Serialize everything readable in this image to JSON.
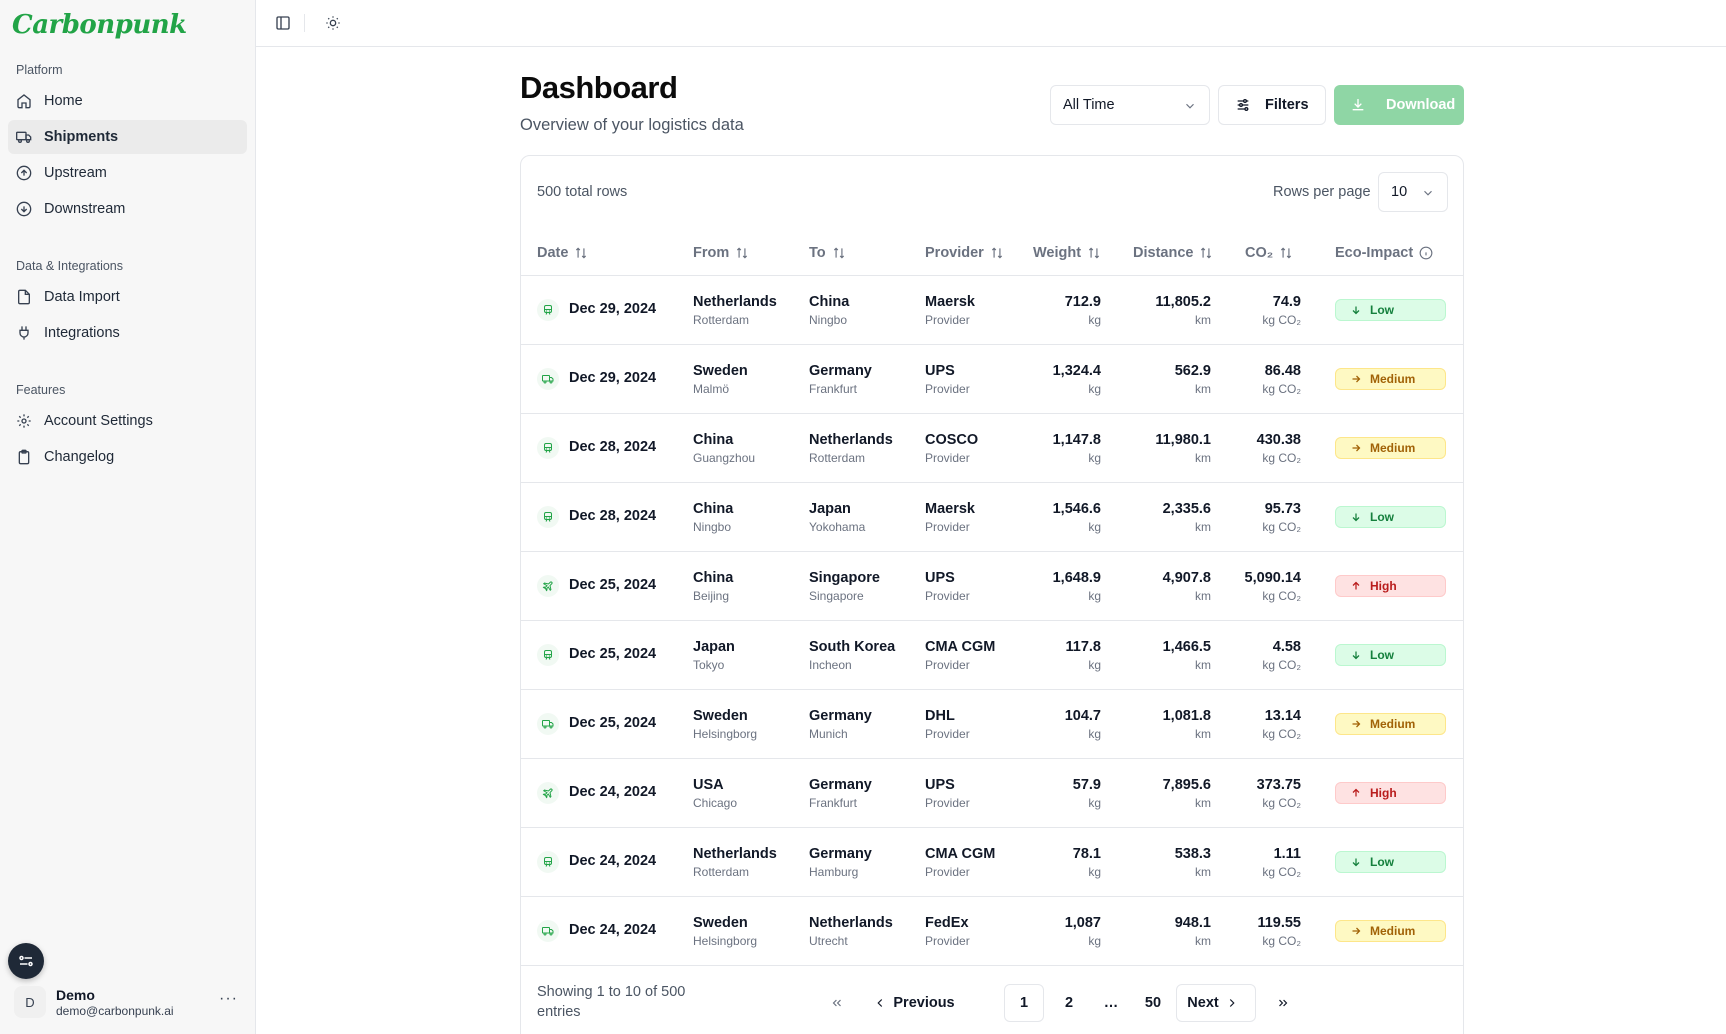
{
  "brand": {
    "name": "Carbonpunk",
    "accent": "#22a447"
  },
  "sidebar": {
    "sections": [
      {
        "heading": "Platform",
        "items": [
          {
            "label": "Home",
            "icon": "home-icon"
          },
          {
            "label": "Shipments",
            "icon": "truck-icon",
            "active": true
          },
          {
            "label": "Upstream",
            "icon": "arrow-up-circle-icon"
          },
          {
            "label": "Downstream",
            "icon": "arrow-down-circle-icon"
          }
        ]
      },
      {
        "heading": "Data & Integrations",
        "items": [
          {
            "label": "Data Import",
            "icon": "file-icon"
          },
          {
            "label": "Integrations",
            "icon": "plug-icon"
          }
        ]
      },
      {
        "heading": "Features",
        "items": [
          {
            "label": "Account Settings",
            "icon": "gear-icon"
          },
          {
            "label": "Changelog",
            "icon": "clipboard-icon"
          }
        ]
      }
    ],
    "user": {
      "initial": "D",
      "name": "Demo",
      "email": "demo@carbonpunk.ai"
    }
  },
  "header": {
    "title": "Dashboard",
    "subtitle": "Overview of your logistics data"
  },
  "toolbar": {
    "time_range": "All Time",
    "filters_label": "Filters",
    "download_label": "Download"
  },
  "table": {
    "total_rows": "500 total rows",
    "rows_per_page_label": "Rows per page",
    "rows_per_page": "10",
    "columns": [
      "Date",
      "From",
      "To",
      "Provider",
      "Weight",
      "Distance",
      "CO₂",
      "Eco-Impact"
    ],
    "rows": [
      {
        "mode": "train-icon",
        "date": "Dec 29, 2024",
        "from": "Netherlands",
        "from_city": "Rotterdam",
        "to": "China",
        "to_city": "Ningbo",
        "provider": "Maersk",
        "provider_sub": "Provider",
        "weight": "712.9",
        "weight_unit": "kg",
        "distance": "11,805.2",
        "distance_unit": "km",
        "co2": "74.9",
        "co2_unit": "kg CO₂",
        "impact": "Low"
      },
      {
        "mode": "truck-icon",
        "date": "Dec 29, 2024",
        "from": "Sweden",
        "from_city": "Malmö",
        "to": "Germany",
        "to_city": "Frankfurt",
        "provider": "UPS",
        "provider_sub": "Provider",
        "weight": "1,324.4",
        "weight_unit": "kg",
        "distance": "562.9",
        "distance_unit": "km",
        "co2": "86.48",
        "co2_unit": "kg CO₂",
        "impact": "Medium"
      },
      {
        "mode": "train-icon",
        "date": "Dec 28, 2024",
        "from": "China",
        "from_city": "Guangzhou",
        "to": "Netherlands",
        "to_city": "Rotterdam",
        "provider": "COSCO",
        "provider_sub": "Provider",
        "weight": "1,147.8",
        "weight_unit": "kg",
        "distance": "11,980.1",
        "distance_unit": "km",
        "co2": "430.38",
        "co2_unit": "kg CO₂",
        "impact": "Medium"
      },
      {
        "mode": "train-icon",
        "date": "Dec 28, 2024",
        "from": "China",
        "from_city": "Ningbo",
        "to": "Japan",
        "to_city": "Yokohama",
        "provider": "Maersk",
        "provider_sub": "Provider",
        "weight": "1,546.6",
        "weight_unit": "kg",
        "distance": "2,335.6",
        "distance_unit": "km",
        "co2": "95.73",
        "co2_unit": "kg CO₂",
        "impact": "Low"
      },
      {
        "mode": "plane-icon",
        "date": "Dec 25, 2024",
        "from": "China",
        "from_city": "Beijing",
        "to": "Singapore",
        "to_city": "Singapore",
        "provider": "UPS",
        "provider_sub": "Provider",
        "weight": "1,648.9",
        "weight_unit": "kg",
        "distance": "4,907.8",
        "distance_unit": "km",
        "co2": "5,090.14",
        "co2_unit": "kg CO₂",
        "impact": "High"
      },
      {
        "mode": "train-icon",
        "date": "Dec 25, 2024",
        "from": "Japan",
        "from_city": "Tokyo",
        "to": "South Korea",
        "to_city": "Incheon",
        "provider": "CMA CGM",
        "provider_sub": "Provider",
        "weight": "117.8",
        "weight_unit": "kg",
        "distance": "1,466.5",
        "distance_unit": "km",
        "co2": "4.58",
        "co2_unit": "kg CO₂",
        "impact": "Low"
      },
      {
        "mode": "truck-icon",
        "date": "Dec 25, 2024",
        "from": "Sweden",
        "from_city": "Helsingborg",
        "to": "Germany",
        "to_city": "Munich",
        "provider": "DHL",
        "provider_sub": "Provider",
        "weight": "104.7",
        "weight_unit": "kg",
        "distance": "1,081.8",
        "distance_unit": "km",
        "co2": "13.14",
        "co2_unit": "kg CO₂",
        "impact": "Medium"
      },
      {
        "mode": "plane-icon",
        "date": "Dec 24, 2024",
        "from": "USA",
        "from_city": "Chicago",
        "to": "Germany",
        "to_city": "Frankfurt",
        "provider": "UPS",
        "provider_sub": "Provider",
        "weight": "57.9",
        "weight_unit": "kg",
        "distance": "7,895.6",
        "distance_unit": "km",
        "co2": "373.75",
        "co2_unit": "kg CO₂",
        "impact": "High"
      },
      {
        "mode": "train-icon",
        "date": "Dec 24, 2024",
        "from": "Netherlands",
        "from_city": "Rotterdam",
        "to": "Germany",
        "to_city": "Hamburg",
        "provider": "CMA CGM",
        "provider_sub": "Provider",
        "weight": "78.1",
        "weight_unit": "kg",
        "distance": "538.3",
        "distance_unit": "km",
        "co2": "1.11",
        "co2_unit": "kg CO₂",
        "impact": "Low"
      },
      {
        "mode": "truck-icon",
        "date": "Dec 24, 2024",
        "from": "Sweden",
        "from_city": "Helsingborg",
        "to": "Netherlands",
        "to_city": "Utrecht",
        "provider": "FedEx",
        "provider_sub": "Provider",
        "weight": "1,087",
        "weight_unit": "kg",
        "distance": "948.1",
        "distance_unit": "km",
        "co2": "119.55",
        "co2_unit": "kg CO₂",
        "impact": "Medium"
      }
    ]
  },
  "pagination": {
    "summary": "Showing 1 to 10 of 500 entries",
    "previous_label": "Previous",
    "next_label": "Next",
    "pages": [
      "1",
      "2",
      "…",
      "50"
    ],
    "current_page": "1"
  }
}
